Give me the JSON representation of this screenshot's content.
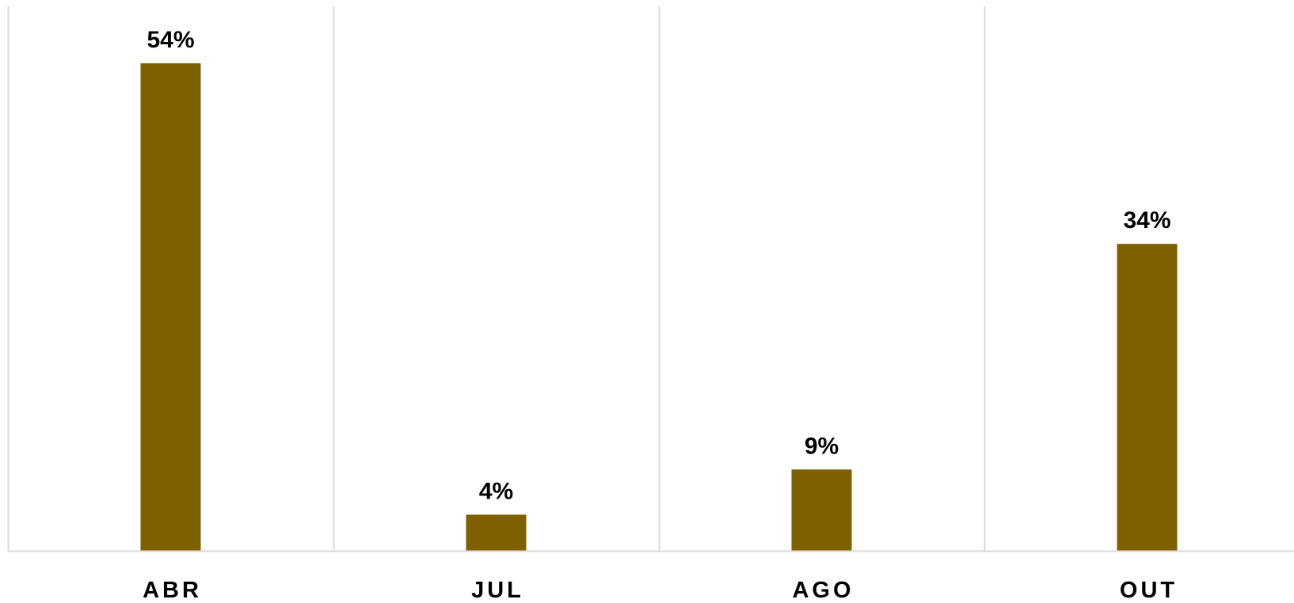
{
  "chart_data": {
    "type": "bar",
    "categories": [
      "ABR",
      "JUL",
      "AGO",
      "OUT"
    ],
    "values": [
      54,
      4,
      9,
      34
    ],
    "data_labels": [
      "54%",
      "4%",
      "9%",
      "34%"
    ],
    "title": "",
    "xlabel": "",
    "ylabel": "",
    "ylim": [
      0,
      60
    ],
    "grid": "vertical category separators",
    "legend": "none",
    "colors": {
      "bar": "#7f6000",
      "gridline": "#d9d9d9",
      "axis": "#d9d9d9"
    }
  }
}
